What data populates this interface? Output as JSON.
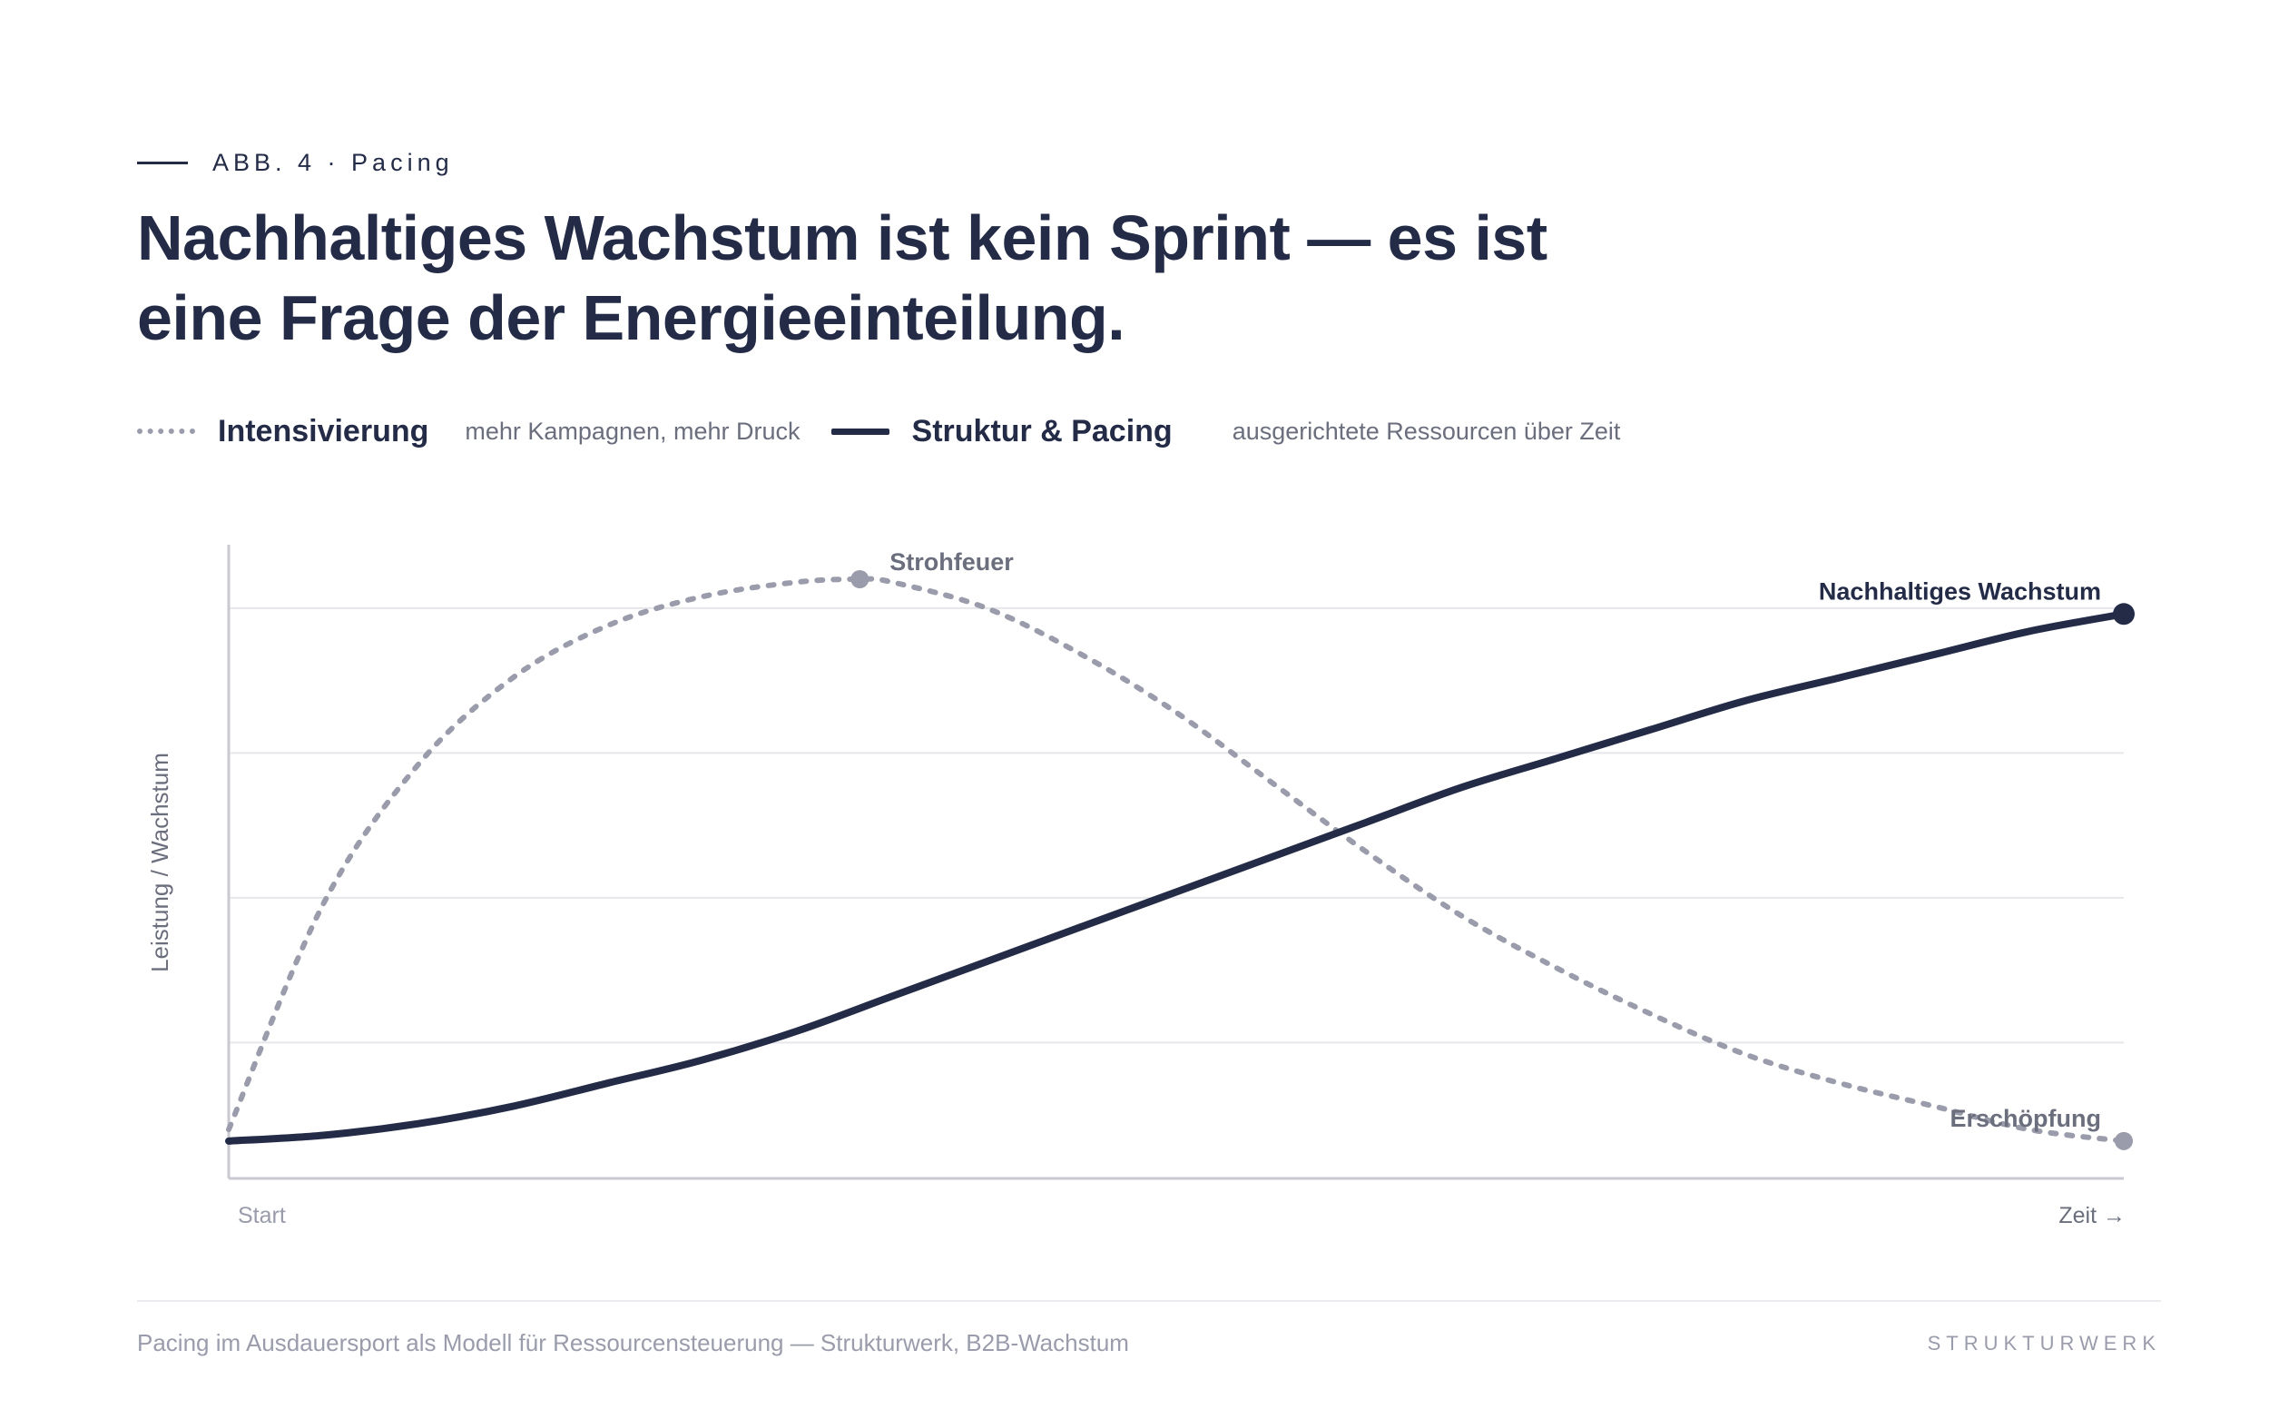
{
  "figure": {
    "eyebrow": "ABB. 4 · Pacing",
    "headline": "Nachhaltiges Wachstum ist kein Sprint — es ist eine Frage der Energieeinteilung."
  },
  "legend": [
    {
      "name": "Intensivierung",
      "desc": "mehr Kampagnen, mehr Druck",
      "style": "dotted"
    },
    {
      "name": "Struktur & Pacing",
      "desc": "ausgerichtete Ressourcen über Zeit",
      "style": "solid"
    }
  ],
  "chart_data": {
    "type": "line",
    "ylabel": "Leistung / Wachstum",
    "x_start_label": "Start",
    "x_end_label": "Zeit →",
    "xlim": [
      0,
      1
    ],
    "ylim": [
      0,
      1
    ],
    "grid": true,
    "series": [
      {
        "name": "Intensivierung",
        "style": "dotted",
        "color": "#9a9cab",
        "x": [
          0,
          0.05,
          0.1,
          0.15,
          0.2,
          0.25,
          0.3,
          0.333,
          0.35,
          0.4,
          0.45,
          0.5,
          0.55,
          0.6,
          0.65,
          0.7,
          0.75,
          0.8,
          0.85,
          0.9,
          0.95,
          1.0
        ],
        "y": [
          0.05,
          0.44,
          0.68,
          0.83,
          0.92,
          0.97,
          0.995,
          1.0,
          0.995,
          0.95,
          0.87,
          0.77,
          0.65,
          0.53,
          0.42,
          0.33,
          0.25,
          0.18,
          0.13,
          0.09,
          0.05,
          0.03
        ],
        "annotations": [
          {
            "x": 0.333,
            "y": 1.0,
            "label": "Strohfeuer"
          },
          {
            "x": 1.0,
            "y": 0.03,
            "label": "Erschöpfung"
          }
        ]
      },
      {
        "name": "Struktur & Pacing",
        "style": "solid",
        "color": "#232b47",
        "x": [
          0,
          0.05,
          0.1,
          0.15,
          0.2,
          0.25,
          0.3,
          0.35,
          0.4,
          0.45,
          0.5,
          0.55,
          0.6,
          0.65,
          0.7,
          0.75,
          0.8,
          0.85,
          0.9,
          0.95,
          1.0
        ],
        "y": [
          0.03,
          0.04,
          0.06,
          0.09,
          0.13,
          0.17,
          0.22,
          0.28,
          0.34,
          0.4,
          0.46,
          0.52,
          0.58,
          0.64,
          0.69,
          0.74,
          0.79,
          0.83,
          0.87,
          0.91,
          0.94
        ],
        "annotations": [
          {
            "x": 1.0,
            "y": 0.94,
            "label": "Nachhaltiges Wachstum"
          }
        ]
      }
    ]
  },
  "footer": {
    "note": "Pacing im Ausdauersport als Modell für Ressourcensteuerung — Strukturwerk, B2B-Wachstum",
    "brand": "STRUKTURWERK"
  }
}
